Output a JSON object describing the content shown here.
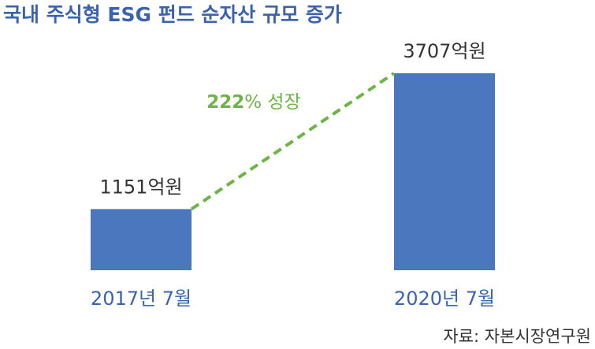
{
  "chart_data": {
    "type": "bar",
    "title": "국내 주식형 ESG 펀드 순자산 규모 증가",
    "categories": [
      "2017년 7월",
      "2020년 7월"
    ],
    "values": [
      1151,
      3707
    ],
    "value_labels": [
      "1151억원",
      "3707억원"
    ],
    "color": "#4a77bd",
    "annotation": [
      "222",
      "% 성장"
    ],
    "annotation_color": "#6cb545",
    "source": "자료: 자본시장연구원"
  }
}
